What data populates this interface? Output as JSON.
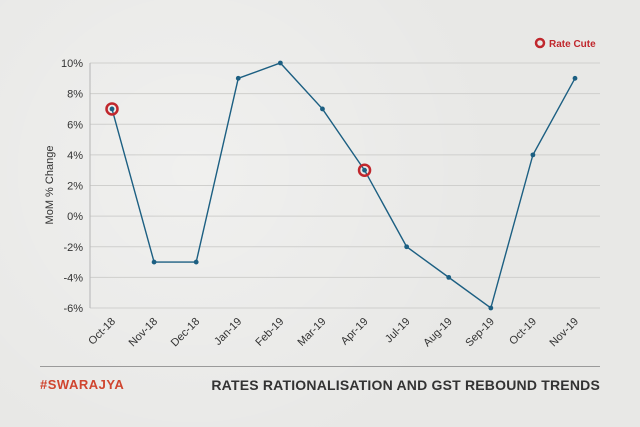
{
  "brand": {
    "hash": "#",
    "name": "SWARAJYA"
  },
  "footer": {
    "title": "RATES RATIONALISATION AND GST REBOUND TRENDS"
  },
  "colors": {
    "line": "#1c5f82",
    "marker_ring": "#c0272d",
    "grid": "#cfcfcd",
    "axis": "#b5b5b5"
  },
  "legend": {
    "label": "Rate Cute",
    "icon": "red-ring-icon",
    "placement": "top-right"
  },
  "chart_data": {
    "type": "line",
    "title": "",
    "xlabel": "",
    "ylabel": "MoM % Change",
    "categories": [
      "Oct-18",
      "Nov-18",
      "Dec-18",
      "Jan-19",
      "Feb-19",
      "Mar-19",
      "Apr-19",
      "Jul-19",
      "Aug-19",
      "Sep-19",
      "Oct-19",
      "Nov-19"
    ],
    "values": [
      7,
      -3,
      -3,
      9,
      10,
      7,
      3,
      -2,
      -4,
      -6,
      4,
      9
    ],
    "highlight_indices": [
      0,
      6
    ],
    "ylim": [
      -6,
      10
    ],
    "yticks": [
      -6,
      -4,
      -2,
      0,
      2,
      4,
      6,
      8,
      10
    ],
    "ytick_labels": [
      "-6%",
      "-4%",
      "-2%",
      "0%",
      "2%",
      "4%",
      "6%",
      "8%",
      "10%"
    ],
    "grid": true
  }
}
